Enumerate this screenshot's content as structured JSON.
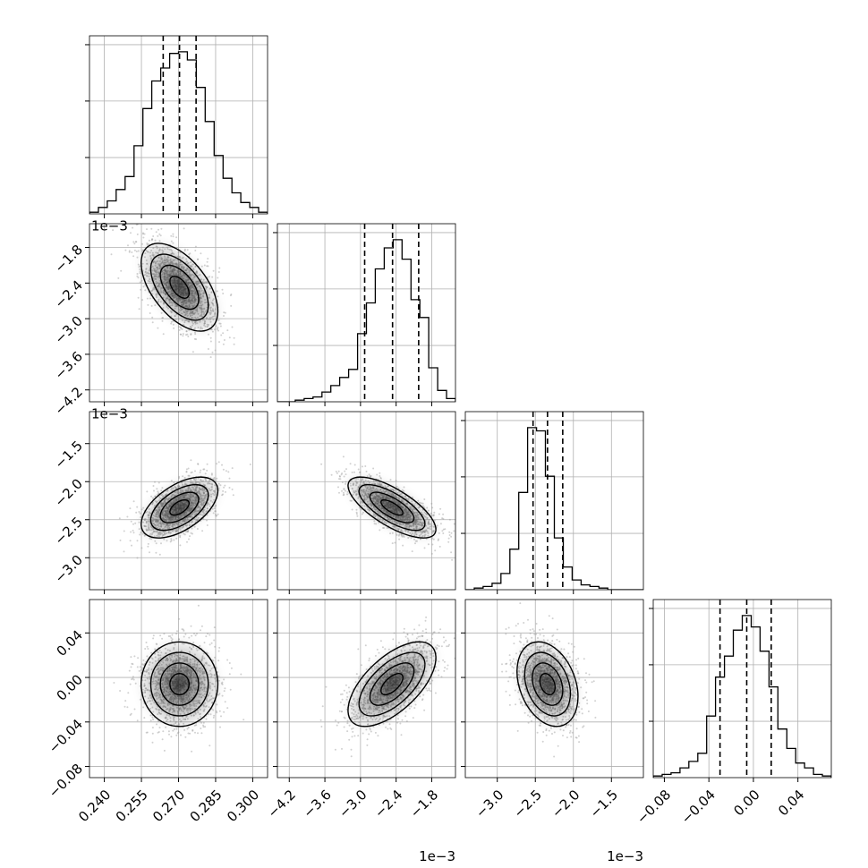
{
  "chart_data": {
    "type": "corner",
    "n_params": 4,
    "grid": true,
    "colors": {
      "line": "#000000",
      "grid": "#b0b0b0",
      "points": "#9a9a9a",
      "density": "#000000"
    },
    "params": [
      {
        "range": [
          0.234,
          0.306
        ],
        "ticks": [
          0.24,
          0.255,
          0.27,
          0.285,
          0.3
        ],
        "tick_labels": [
          "0.240",
          "0.255",
          "0.270",
          "0.285",
          "0.300"
        ],
        "offset_label": "",
        "mean": 0.2704,
        "sd": 0.00775,
        "quantiles": [
          0.2638,
          0.2704,
          0.2771
        ],
        "hist": [
          0.01,
          0.04,
          0.08,
          0.15,
          0.23,
          0.42,
          0.65,
          0.82,
          0.9,
          0.99,
          1.0,
          0.95,
          0.78,
          0.57,
          0.36,
          0.22,
          0.13,
          0.07,
          0.04,
          0.01
        ]
      },
      {
        "range": [
          -4.4,
          -1.4
        ],
        "ticks": [
          -4.2,
          -3.6,
          -3.0,
          -2.4,
          -1.8
        ],
        "tick_labels": [
          "−4.2",
          "−3.6",
          "−3.0",
          "−2.4",
          "−1.8"
        ],
        "offset_label": "1e−3",
        "mean": -2.47,
        "sd": 0.37,
        "quantiles": [
          -2.93,
          -2.46,
          -2.02
        ],
        "hist": [
          0.0,
          0.0,
          0.01,
          0.02,
          0.03,
          0.06,
          0.1,
          0.15,
          0.2,
          0.42,
          0.61,
          0.82,
          0.95,
          1.0,
          0.88,
          0.63,
          0.52,
          0.21,
          0.07,
          0.02
        ]
      },
      {
        "range": [
          -3.42,
          -1.08
        ],
        "ticks": [
          -3.0,
          -2.5,
          -2.0,
          -1.5
        ],
        "tick_labels": [
          "−3.0",
          "−2.5",
          "−2.0",
          "−1.5"
        ],
        "offset_label": "1e−3",
        "mean": -2.34,
        "sd": 0.2,
        "quantiles": [
          -2.53,
          -2.34,
          -2.14
        ],
        "hist": [
          0.0,
          0.01,
          0.02,
          0.04,
          0.1,
          0.25,
          0.6,
          1.0,
          0.98,
          0.7,
          0.32,
          0.14,
          0.06,
          0.03,
          0.02,
          0.01,
          0.0,
          0.0,
          0.0,
          0.0
        ]
      },
      {
        "range": [
          -0.09,
          0.07
        ],
        "ticks": [
          -0.08,
          -0.04,
          0.0,
          0.04
        ],
        "tick_labels": [
          "−0.08",
          "−0.04",
          "0.00",
          "0.04"
        ],
        "offset_label": "",
        "mean": -0.006,
        "sd": 0.019,
        "quantiles": [
          -0.03,
          -0.006,
          0.016
        ],
        "hist": [
          0.01,
          0.02,
          0.03,
          0.06,
          0.1,
          0.15,
          0.38,
          0.62,
          0.75,
          0.91,
          1.0,
          0.93,
          0.78,
          0.56,
          0.3,
          0.18,
          0.09,
          0.06,
          0.02,
          0.01
        ]
      }
    ],
    "correlations": [
      [
        1,
        -0.55,
        0.55,
        0.0
      ],
      [
        -0.55,
        1,
        -0.72,
        0.62
      ],
      [
        0.55,
        -0.72,
        1,
        -0.3
      ],
      [
        0.0,
        0.62,
        -0.3,
        1
      ]
    ],
    "contour_levels_sigma": [
      0.5,
      1.0,
      1.5,
      2.0
    ]
  }
}
